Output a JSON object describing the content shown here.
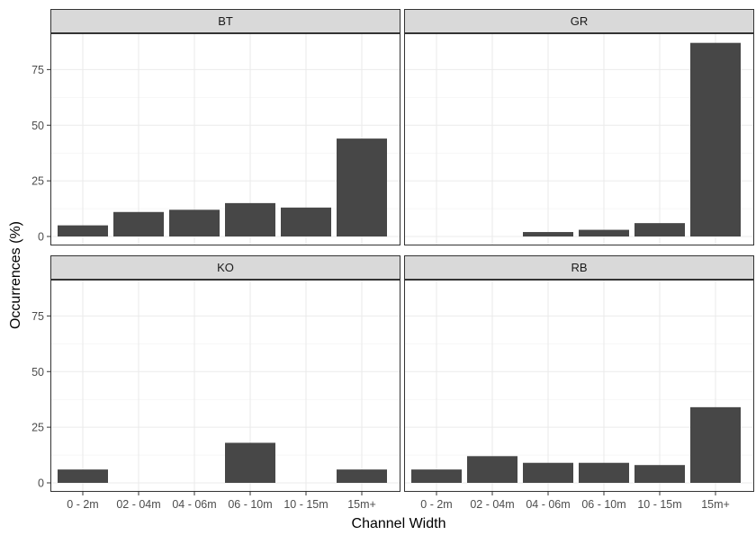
{
  "chart_data": {
    "type": "bar",
    "xlabel": "Channel Width",
    "ylabel": "Occurrences (%)",
    "categories": [
      "0 - 2m",
      "02 - 04m",
      "04 - 06m",
      "06 - 10m",
      "10 - 15m",
      "15m+"
    ],
    "ylim": [
      0,
      87
    ],
    "yticks": [
      0,
      25,
      50,
      75
    ],
    "grid": true,
    "bar_color": "#474747",
    "strip_color": "#d9d9d9",
    "facets": [
      {
        "name": "BT",
        "values": [
          5,
          11,
          12,
          15,
          13,
          44
        ]
      },
      {
        "name": "GR",
        "values": [
          0,
          0,
          2,
          3,
          6,
          87
        ]
      },
      {
        "name": "KO",
        "values": [
          6,
          0,
          0,
          18,
          0,
          6
        ]
      },
      {
        "name": "RB",
        "values": [
          6,
          12,
          9,
          9,
          8,
          34
        ]
      }
    ]
  }
}
